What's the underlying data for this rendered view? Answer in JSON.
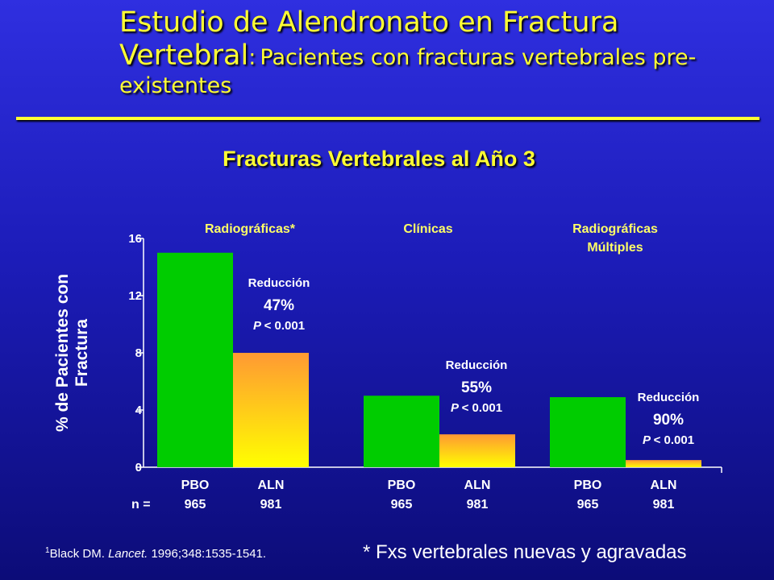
{
  "header": {
    "title_main": "Estudio de Alendronato en Fractura Vertebral",
    "title_sep": ":",
    "title_sub": "Pacientes con fracturas vertebrales pre-existentes"
  },
  "chart_data": {
    "type": "bar",
    "title": "Fracturas Vertebrales al Año 3",
    "ylabel": "% de Pacientes con Fractura",
    "ylim": [
      0,
      16
    ],
    "yticks": [
      "0",
      "4",
      "8",
      "12",
      "16"
    ],
    "categories": [
      "Radiográficas*",
      "Clínicas",
      "Radiográficas Múltiples"
    ],
    "category_labels": [
      [
        "Radiográficas*"
      ],
      [
        "Clínicas"
      ],
      [
        "Radiográficas",
        "Múltiples"
      ]
    ],
    "series": [
      {
        "name": "PBO",
        "values": [
          15.0,
          5.0,
          4.9
        ],
        "color": "#00cc00"
      },
      {
        "name": "ALN",
        "values": [
          8.0,
          2.3,
          0.5
        ],
        "color": "#ff9933"
      }
    ],
    "n_label": "n =",
    "n_values": [
      [
        "965",
        "981"
      ],
      [
        "965",
        "981"
      ],
      [
        "965",
        "981"
      ]
    ],
    "annotations": [
      {
        "label": "Reducción",
        "value": "47%",
        "p_italic": "P",
        "p_rest": "< 0.001"
      },
      {
        "label": "Reducción",
        "value": "55%",
        "p_italic": "P",
        "p_rest": "< 0.001"
      },
      {
        "label": "Reducción",
        "value": "90%",
        "p_italic": "P",
        "p_rest": "< 0.001"
      }
    ]
  },
  "footer": {
    "citation_sup": "1",
    "citation_author": "Black DM.",
    "citation_journal": "Lancet.",
    "citation_rest": "1996;348:1535-1541.",
    "note": "* Fxs vertebrales nuevas y agravadas"
  },
  "colors": {
    "accent": "#ffff33",
    "pbo": "#00cc00",
    "aln_top": "#ff9933",
    "aln_bottom": "#ffff00"
  }
}
